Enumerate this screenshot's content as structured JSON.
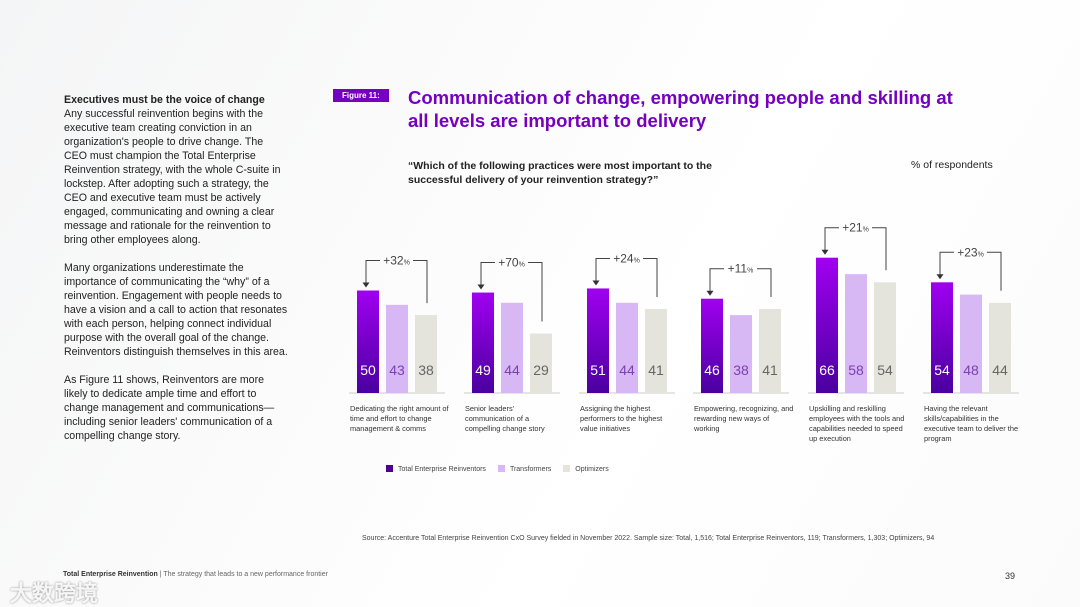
{
  "left": {
    "heading": "Executives must be the voice of change",
    "p1": "Any successful reinvention begins with the executive team creating conviction in an organization's people to drive change. The CEO must champion the Total Enterprise Reinvention strategy, with the whole C-suite in lockstep. After adopting such a strategy, the CEO and executive team must be actively engaged, communicating and owning a clear message and rationale for the reinvention to bring other employees along.",
    "p2": "Many organizations underestimate the importance of communicating the “why” of a reinvention. Engagement with people needs to have a vision and a call to action that resonates with each person, helping connect individual purpose with the overall goal of the change. Reinventors distinguish themselves in this area.",
    "p3": "As Figure 11 shows, Reinventors are more likely to dedicate ample time and effort to change management and communications—including senior leaders' communication of a compelling change story."
  },
  "figure_label": "Figure 11:",
  "colors": {
    "accent": "#7500c0",
    "reinventors": "#6a00c8",
    "transformers": "#d7b8f5",
    "optimizers": "#e4e4dc"
  },
  "chart_data": {
    "type": "bar",
    "title": "Communication of change, empowering people and skilling at all levels are important to delivery",
    "question": "“Which of the following practices were most important to the successful delivery of your reinvention strategy?”",
    "ylabel": "% of respondents",
    "ylim": [
      0,
      70
    ],
    "categories": [
      "Dedicating the right amount of time and effort to change management & comms",
      "Senior leaders' communication of a compelling change story",
      "Assigning the highest performers to the highest value initiatives",
      "Empowering, recognizing, and rewarding new ways of working",
      "Upskilling and reskilling employees with the tools and capabilities needed to speed up execution",
      "Having the relevant skills/capabilities in the executive team to deliver the program"
    ],
    "series": [
      {
        "name": "Total Enterprise Reinventors",
        "values": [
          50,
          49,
          51,
          46,
          66,
          54
        ]
      },
      {
        "name": "Transformers",
        "values": [
          43,
          44,
          44,
          38,
          58,
          48
        ]
      },
      {
        "name": "Optimizers",
        "values": [
          38,
          29,
          41,
          41,
          54,
          44
        ]
      }
    ],
    "annotations": [
      "+32",
      "+70",
      "+24",
      "+11",
      "+21",
      "+23"
    ],
    "annotation_unit": "%",
    "legend": "bottom-left"
  },
  "source": "Source: Accenture Total Enterprise Reinvention CxO Survey fielded in November 2022. Sample size: Total, 1,516; Total Enterprise Reinventors, 119; Transformers, 1,303; Optimizers, 94",
  "footer": {
    "title": "Total Enterprise Reinvention",
    "subtitle": " | The strategy that leads to a new performance frontier",
    "page": "39"
  },
  "watermark": "大数跨境"
}
